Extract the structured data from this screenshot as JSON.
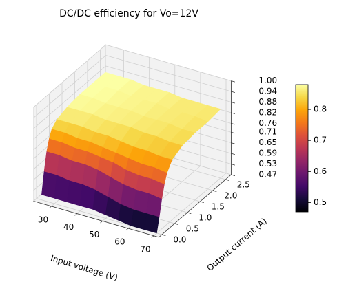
{
  "chart_data": {
    "type": "surface3d",
    "title": "DC/DC efficiency for Vo=12V",
    "xlabel": "Input voltage (V)",
    "ylabel": "Output current (A)",
    "colormap": "inferno",
    "x": [
      25,
      30,
      35,
      40,
      45,
      50,
      55,
      60,
      65,
      70
    ],
    "y": [
      0,
      0.1,
      0.2,
      0.3,
      0.4,
      0.6,
      1.0,
      1.5,
      2.0,
      2.5
    ],
    "z": [
      [
        0.5,
        0.5,
        0.5,
        0.5,
        0.5,
        0.49,
        0.48,
        0.47,
        0.47,
        0.47
      ],
      [
        0.62,
        0.62,
        0.61,
        0.61,
        0.6,
        0.58,
        0.56,
        0.55,
        0.55,
        0.55
      ],
      [
        0.72,
        0.72,
        0.71,
        0.71,
        0.7,
        0.68,
        0.66,
        0.65,
        0.65,
        0.64
      ],
      [
        0.78,
        0.78,
        0.77,
        0.77,
        0.76,
        0.75,
        0.73,
        0.72,
        0.72,
        0.71
      ],
      [
        0.82,
        0.82,
        0.81,
        0.81,
        0.8,
        0.79,
        0.78,
        0.77,
        0.77,
        0.76
      ],
      [
        0.85,
        0.85,
        0.85,
        0.84,
        0.84,
        0.83,
        0.82,
        0.82,
        0.81,
        0.81
      ],
      [
        0.87,
        0.87,
        0.87,
        0.86,
        0.86,
        0.86,
        0.85,
        0.85,
        0.84,
        0.84
      ],
      [
        0.88,
        0.88,
        0.87,
        0.87,
        0.87,
        0.86,
        0.86,
        0.86,
        0.85,
        0.85
      ],
      [
        0.88,
        0.88,
        0.88,
        0.87,
        0.87,
        0.87,
        0.86,
        0.86,
        0.86,
        0.85
      ],
      [
        0.88,
        0.88,
        0.88,
        0.87,
        0.87,
        0.87,
        0.86,
        0.86,
        0.86,
        0.86
      ]
    ],
    "xlim": [
      23,
      72
    ],
    "ylim": [
      -0.12,
      2.72
    ],
    "zlim": [
      0.47,
      1.0
    ],
    "xticks": [
      30,
      40,
      50,
      60,
      70
    ],
    "yticks": [
      {
        "value": 0,
        "label": "0.0"
      },
      0.5,
      {
        "value": 1,
        "label": "1.0"
      },
      1.5,
      {
        "value": 2,
        "label": "2.0"
      },
      2.5
    ],
    "zticks": [
      0.47,
      0.53,
      0.59,
      0.65,
      0.71,
      0.76,
      0.82,
      0.88,
      0.94,
      {
        "value": 1,
        "label": "1.00"
      }
    ],
    "clim": [
      0.47,
      0.88
    ],
    "cticks": [
      0.5,
      0.6,
      0.7,
      0.8
    ],
    "grid": true
  }
}
